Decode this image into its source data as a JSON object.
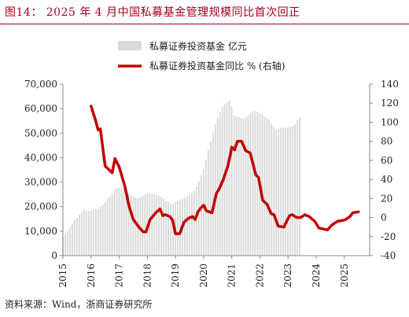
{
  "header": {
    "title": "图14： 2025 年 4 月中国私募基金管理规模同比首次回正"
  },
  "footer": {
    "source": "资料来源：Wind，浙商证券研究所"
  },
  "colors": {
    "title": "#a50021",
    "bars": "#d9d9d9",
    "line": "#c00000"
  },
  "chart_data": {
    "type": "bar+line",
    "legend_position": "top-right",
    "grid": false,
    "x_ticks": [
      "2015",
      "2016",
      "2017",
      "2018",
      "2019",
      "2020",
      "2021",
      "2022",
      "2023",
      "2024",
      "2025"
    ],
    "y_left": {
      "lim": [
        0,
        70000
      ],
      "ticks": [
        "0",
        "10,000",
        "20,000",
        "30,000",
        "40,000",
        "50,000",
        "60,000",
        "70,000"
      ]
    },
    "y_right": {
      "lim": [
        -40,
        140
      ],
      "ticks": [
        "-40",
        "-20",
        "0",
        "20",
        "40",
        "60",
        "80",
        "100",
        "120",
        "140"
      ]
    },
    "series": [
      {
        "name": "私募证券投资基金 亿元",
        "type": "bar",
        "axis": "left",
        "x_start": 2015.0,
        "x_step": 0.0833,
        "values": [
          7500,
          8800,
          10200,
          11600,
          12900,
          14500,
          15300,
          16800,
          17600,
          18800,
          18300,
          18400,
          18500,
          18700,
          19000,
          19200,
          20000,
          20800,
          21900,
          23100,
          24200,
          25400,
          26700,
          27600,
          27800,
          28100,
          28500,
          26900,
          25600,
          24800,
          24200,
          23800,
          23400,
          23700,
          24500,
          25000,
          25600,
          25400,
          25200,
          25000,
          24800,
          24500,
          24100,
          23200,
          22300,
          22100,
          21500,
          21300,
          21900,
          22300,
          22900,
          23300,
          23800,
          24300,
          24900,
          25500,
          26500,
          28000,
          30400,
          32800,
          35500,
          39200,
          43100,
          46500,
          50200,
          53700,
          56400,
          58600,
          60700,
          61900,
          62600,
          63500,
          60900,
          57200,
          56800,
          56500,
          56200,
          55900,
          56500,
          57100,
          58100,
          58900,
          59100,
          58700,
          58100,
          57400,
          56900,
          56300,
          55400,
          53800,
          52500,
          51400,
          51600,
          52000,
          52300,
          52100,
          52500,
          52600,
          52800,
          53600,
          55400,
          56200
        ]
      },
      {
        "name": "私募证券投资基金同比 % (右轴)",
        "type": "line",
        "axis": "right",
        "points": [
          [
            2016.0,
            117
          ],
          [
            2016.15,
            103
          ],
          [
            2016.25,
            92
          ],
          [
            2016.33,
            93
          ],
          [
            2016.5,
            54
          ],
          [
            2016.75,
            47
          ],
          [
            2016.85,
            62
          ],
          [
            2017.0,
            53
          ],
          [
            2017.2,
            33
          ],
          [
            2017.35,
            12
          ],
          [
            2017.5,
            -2
          ],
          [
            2017.7,
            -10
          ],
          [
            2017.85,
            -15
          ],
          [
            2017.95,
            -15
          ],
          [
            2018.1,
            -2
          ],
          [
            2018.3,
            5
          ],
          [
            2018.45,
            9
          ],
          [
            2018.55,
            2
          ],
          [
            2018.65,
            3
          ],
          [
            2018.8,
            1
          ],
          [
            2018.9,
            -3
          ],
          [
            2019.0,
            -17
          ],
          [
            2019.15,
            -17
          ],
          [
            2019.3,
            -5
          ],
          [
            2019.45,
            -1
          ],
          [
            2019.6,
            1
          ],
          [
            2019.7,
            -2
          ],
          [
            2019.8,
            6
          ],
          [
            2019.9,
            10
          ],
          [
            2020.0,
            13
          ],
          [
            2020.1,
            7
          ],
          [
            2020.3,
            5
          ],
          [
            2020.45,
            25
          ],
          [
            2020.55,
            30
          ],
          [
            2020.7,
            40
          ],
          [
            2020.85,
            53
          ],
          [
            2020.95,
            66
          ],
          [
            2021.0,
            74
          ],
          [
            2021.1,
            71
          ],
          [
            2021.2,
            80
          ],
          [
            2021.35,
            80
          ],
          [
            2021.5,
            70
          ],
          [
            2021.65,
            68
          ],
          [
            2021.75,
            57
          ],
          [
            2021.85,
            45
          ],
          [
            2021.95,
            42
          ],
          [
            2022.1,
            18
          ],
          [
            2022.25,
            14
          ],
          [
            2022.4,
            4
          ],
          [
            2022.5,
            3
          ],
          [
            2022.65,
            -9
          ],
          [
            2022.85,
            -10
          ],
          [
            2023.05,
            2
          ],
          [
            2023.15,
            3
          ],
          [
            2023.3,
            0
          ],
          [
            2023.45,
            0
          ],
          [
            2023.6,
            3
          ],
          [
            2023.75,
            1
          ],
          [
            2023.95,
            -4
          ],
          [
            2024.1,
            -11
          ],
          [
            2024.25,
            -12
          ],
          [
            2024.4,
            -13
          ],
          [
            2024.55,
            -8
          ],
          [
            2024.75,
            -4
          ],
          [
            2024.95,
            -3
          ],
          [
            2025.05,
            -2
          ],
          [
            2025.2,
            1
          ],
          [
            2025.3,
            5
          ],
          [
            2025.5,
            6
          ]
        ]
      }
    ]
  }
}
